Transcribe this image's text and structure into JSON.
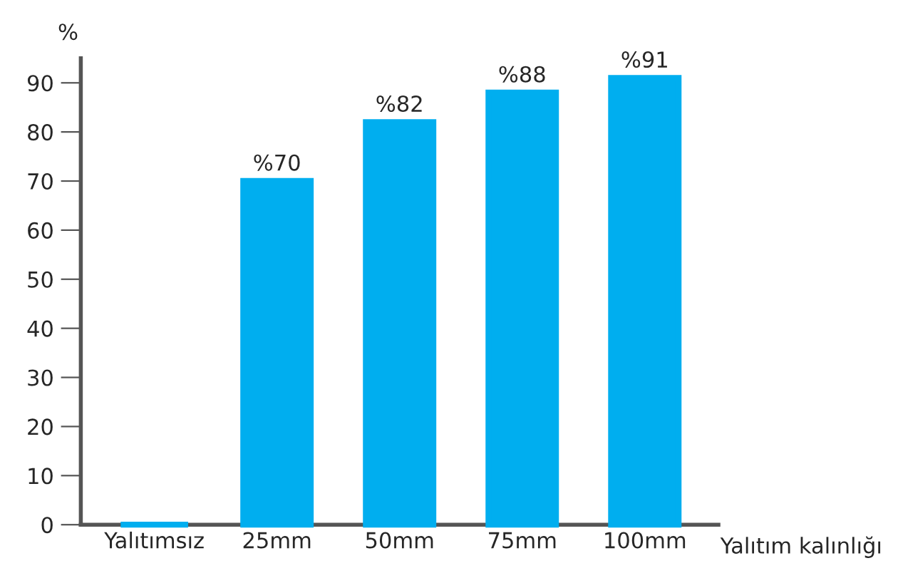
{
  "chart_data": {
    "type": "bar",
    "xlabel": "Yalıtım kalınlığı",
    "ylabel": "%",
    "categories": [
      "Yalıtımsız",
      "25mm",
      "50mm",
      "75mm",
      "100mm"
    ],
    "values": [
      0,
      70,
      82,
      88,
      91
    ],
    "value_labels": [
      null,
      "%70",
      "%82",
      "%88",
      "%91"
    ],
    "color": "#00aeef",
    "ylim": [
      0,
      95
    ],
    "yticks": [
      0,
      10,
      20,
      30,
      40,
      50,
      60,
      70,
      80,
      90
    ],
    "grid": false,
    "legend": false
  }
}
